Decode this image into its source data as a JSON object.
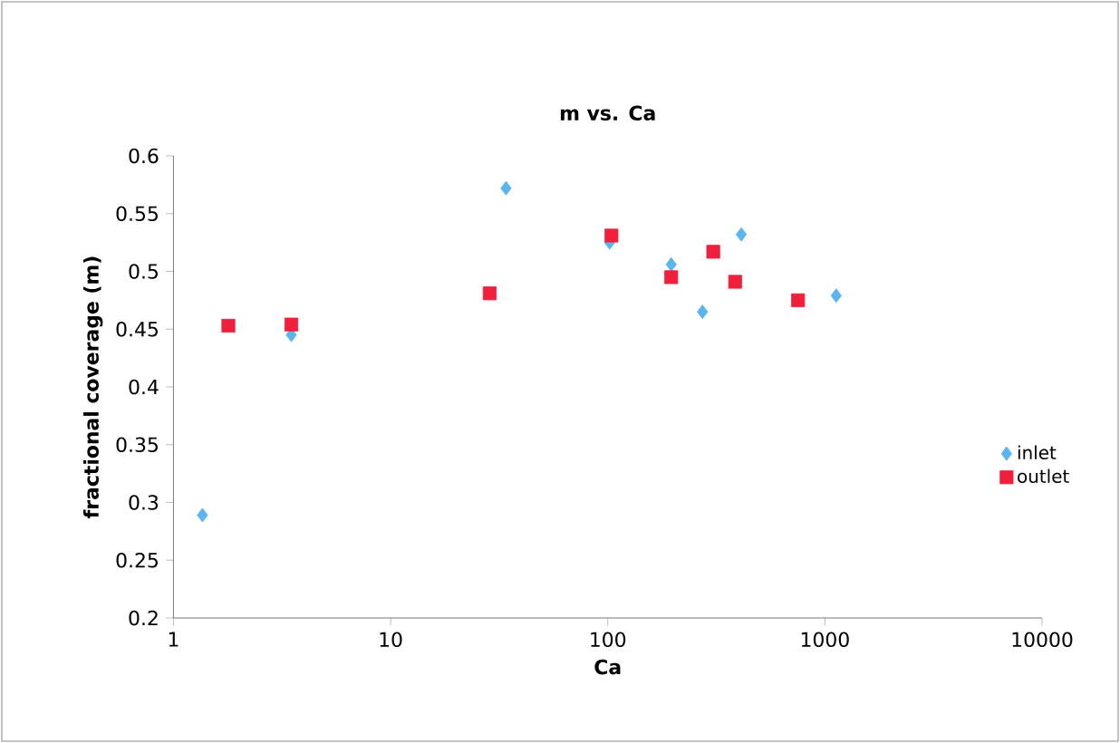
{
  "chart_data": {
    "type": "scatter",
    "title": "m vs. Ca",
    "xlabel": "Ca",
    "ylabel": "fractional coverage (m)",
    "log": "x",
    "xlim": [
      1,
      10000
    ],
    "xticks": [
      1,
      10,
      100,
      1000,
      10000
    ],
    "ylim": [
      0.2,
      0.6
    ],
    "yticks": [
      0.2,
      0.25,
      0.3,
      0.35,
      0.4,
      0.45,
      0.5,
      0.55,
      0.6
    ],
    "legend": "right",
    "grid": false,
    "series": [
      {
        "name": "inlet",
        "color": "#5ab4ee",
        "marker": "diamond",
        "x": [
          1.36,
          3.49,
          28.6,
          34,
          102,
          196,
          273,
          412,
          752,
          1127
        ],
        "values": [
          0.289,
          0.445,
          null,
          0.572,
          0.525,
          0.506,
          0.465,
          0.532,
          null,
          0.479
        ]
      },
      {
        "name": "outlet",
        "color": "#f0203c",
        "marker": "square",
        "x": [
          1.79,
          3.49,
          28.6,
          104,
          196,
          306,
          386,
          752
        ],
        "values": [
          0.453,
          0.454,
          0.481,
          0.531,
          0.495,
          0.517,
          0.491,
          0.475
        ]
      }
    ]
  }
}
